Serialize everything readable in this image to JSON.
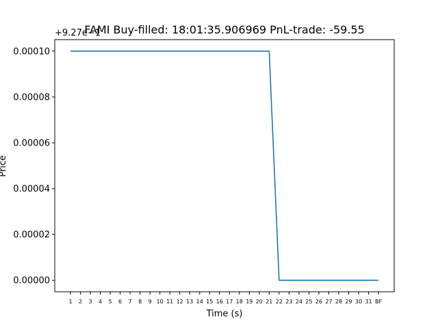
{
  "chart_data": {
    "type": "line",
    "title": "FAMI  Buy-filled:  18:01:35.906969  PnL-trade:  -59.55",
    "xlabel": "Time (s)",
    "ylabel": "Price",
    "offset_label": "+9.27e−1",
    "categories": [
      "1",
      "2",
      "3",
      "4",
      "5",
      "6",
      "7",
      "8",
      "9",
      "10",
      "11",
      "12",
      "13",
      "14",
      "15",
      "16",
      "17",
      "18",
      "19",
      "20",
      "21",
      "22",
      "23",
      "24",
      "25",
      "26",
      "27",
      "28",
      "29",
      "30",
      "31",
      "BF"
    ],
    "y_ticks": [
      "0.00000",
      "0.00002",
      "0.00004",
      "0.00006",
      "0.00008",
      "0.00010"
    ],
    "ylim": [
      -5e-06,
      0.000105
    ],
    "grid": false,
    "series": [
      {
        "color": "#1f77b4",
        "values": [
          0.0001,
          0.0001,
          0.0001,
          0.0001,
          0.0001,
          0.0001,
          0.0001,
          0.0001,
          0.0001,
          0.0001,
          0.0001,
          0.0001,
          0.0001,
          0.0001,
          0.0001,
          0.0001,
          0.0001,
          0.0001,
          0.0001,
          0.0001,
          0.0001,
          0,
          0,
          0,
          0,
          0,
          0,
          0,
          0,
          0,
          0,
          0
        ]
      }
    ]
  }
}
